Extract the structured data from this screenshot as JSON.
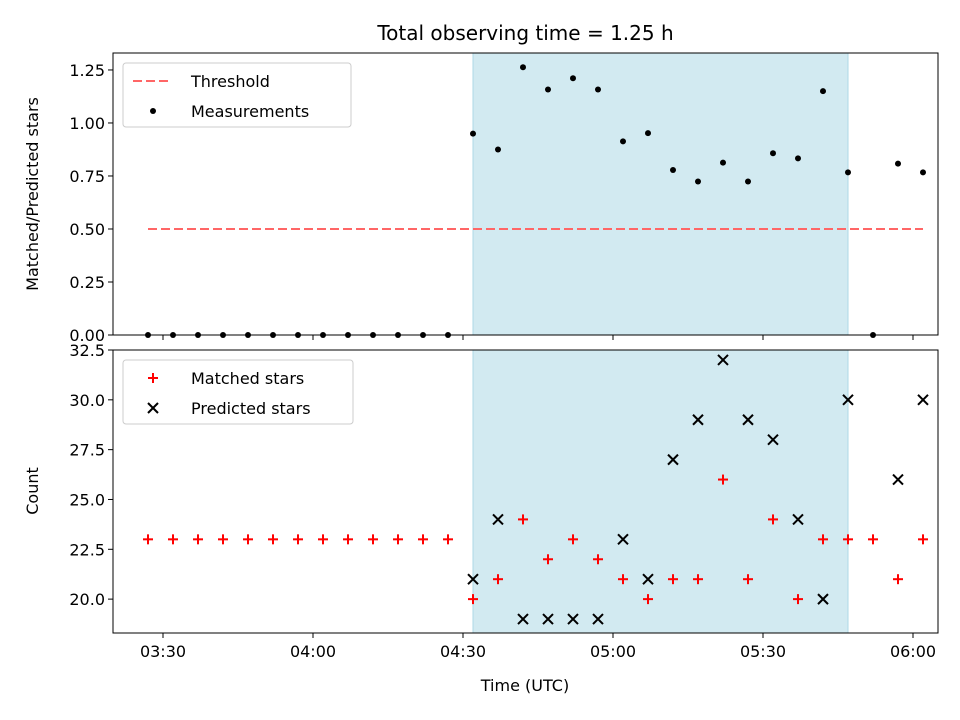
{
  "title": "Total observing time = 1.25 h",
  "colors": {
    "threshold": "#ff6666",
    "measurements": "#000000",
    "matched": "#ff0000",
    "predicted": "#000000",
    "band": "#add8e6"
  },
  "chart_data": [
    {
      "type": "scatter",
      "ylabel": "Matched/Predicted stars",
      "ylim": [
        0,
        1.33
      ],
      "yticks": [
        0.0,
        0.25,
        0.5,
        0.75,
        1.0,
        1.25
      ],
      "ytick_labels": [
        "0.00",
        "0.25",
        "0.50",
        "0.75",
        "1.00",
        "1.25"
      ],
      "xlim": [
        "03:20",
        "06:05"
      ],
      "shaded_interval": [
        "04:32",
        "05:47"
      ],
      "legend_position": "upper-left",
      "series": [
        {
          "name": "Threshold",
          "style": "dashed-line",
          "x": [
            "03:27",
            "06:02"
          ],
          "y": [
            0.5,
            0.5
          ]
        },
        {
          "name": "Measurements",
          "style": "dot",
          "x": [
            "03:27",
            "03:32",
            "03:37",
            "03:42",
            "03:47",
            "03:52",
            "03:57",
            "04:02",
            "04:07",
            "04:12",
            "04:17",
            "04:22",
            "04:27",
            "04:32",
            "04:37",
            "04:42",
            "04:47",
            "04:52",
            "04:57",
            "05:02",
            "05:07",
            "05:12",
            "05:17",
            "05:22",
            "05:27",
            "05:32",
            "05:37",
            "05:42",
            "05:47",
            "05:52",
            "05:57",
            "06:02"
          ],
          "y": [
            0,
            0,
            0,
            0,
            0,
            0,
            0,
            0,
            0,
            0,
            0,
            0,
            0,
            0.95,
            0.875,
            1.263,
            1.158,
            1.211,
            1.158,
            0.913,
            0.952,
            0.778,
            0.724,
            0.813,
            0.724,
            0.857,
            0.833,
            1.15,
            0.767,
            0,
            0.808,
            0.767
          ]
        }
      ]
    },
    {
      "type": "scatter",
      "xlabel": "Time (UTC)",
      "ylabel": "Count",
      "ylim": [
        18.3,
        32.5
      ],
      "yticks": [
        20.0,
        22.5,
        25.0,
        27.5,
        30.0,
        32.5
      ],
      "ytick_labels": [
        "20.0",
        "22.5",
        "25.0",
        "27.5",
        "30.0",
        "32.5"
      ],
      "xlim": [
        "03:20",
        "06:05"
      ],
      "xticks": [
        "03:30",
        "04:00",
        "04:30",
        "05:00",
        "05:30",
        "06:00"
      ],
      "shaded_interval": [
        "04:32",
        "05:47"
      ],
      "legend_position": "upper-left",
      "series": [
        {
          "name": "Matched stars",
          "style": "plus",
          "x": [
            "03:27",
            "03:32",
            "03:37",
            "03:42",
            "03:47",
            "03:52",
            "03:57",
            "04:02",
            "04:07",
            "04:12",
            "04:17",
            "04:22",
            "04:27",
            "04:32",
            "04:37",
            "04:42",
            "04:47",
            "04:52",
            "04:57",
            "05:02",
            "05:07",
            "05:12",
            "05:17",
            "05:22",
            "05:27",
            "05:32",
            "05:37",
            "05:42",
            "05:47",
            "05:52",
            "05:57",
            "06:02"
          ],
          "y": [
            23,
            23,
            23,
            23,
            23,
            23,
            23,
            23,
            23,
            23,
            23,
            23,
            23,
            20,
            21,
            24,
            22,
            23,
            22,
            21,
            20,
            21,
            21,
            26,
            21,
            24,
            20,
            23,
            23,
            23,
            21,
            23
          ]
        },
        {
          "name": "Predicted stars",
          "style": "x",
          "x": [
            "04:32",
            "04:37",
            "04:42",
            "04:47",
            "04:52",
            "04:57",
            "05:02",
            "05:07",
            "05:12",
            "05:17",
            "05:22",
            "05:27",
            "05:32",
            "05:37",
            "05:42",
            "05:47",
            "05:57",
            "06:02"
          ],
          "y": [
            21,
            24,
            19,
            19,
            19,
            19,
            23,
            21,
            27,
            29,
            32,
            29,
            28,
            24,
            20,
            30,
            26,
            30
          ]
        }
      ]
    }
  ]
}
